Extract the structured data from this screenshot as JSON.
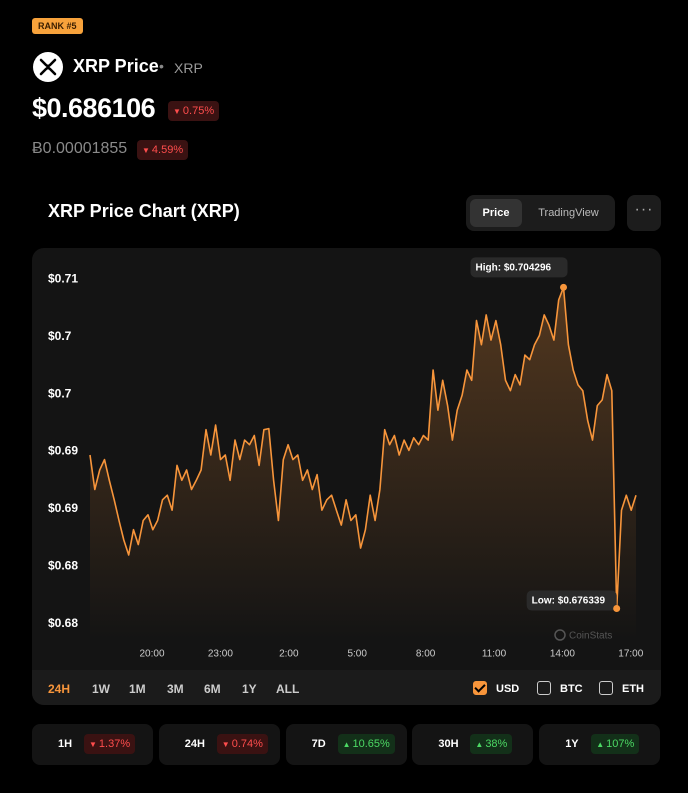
{
  "header": {
    "rank": "RANK #5",
    "name": "XRP Price",
    "symbol": "XRP",
    "price": "$0.686106",
    "change": {
      "text": "0.75%",
      "direction": "down"
    },
    "btc_price": "Ƀ0.00001855",
    "btc_change": {
      "text": "4.59%",
      "direction": "down"
    }
  },
  "tabs": [
    {
      "label": "Price",
      "active": true
    },
    {
      "label": "TradingView",
      "active": false
    }
  ],
  "chart_data": {
    "type": "line",
    "title": "XRP Price Chart (XRP)",
    "color": "#f7953b",
    "values": [
      0.6897,
      0.6867,
      0.6884,
      0.6893,
      0.6875,
      0.6858,
      0.684,
      0.6823,
      0.681,
      0.6832,
      0.6819,
      0.684,
      0.6845,
      0.6832,
      0.684,
      0.6858,
      0.6862,
      0.6849,
      0.6888,
      0.6875,
      0.6884,
      0.6867,
      0.6875,
      0.6884,
      0.6919,
      0.6897,
      0.6923,
      0.6893,
      0.6897,
      0.6875,
      0.691,
      0.6893,
      0.691,
      0.6906,
      0.6914,
      0.6888,
      0.6919,
      0.692,
      0.6875,
      0.684,
      0.6893,
      0.6906,
      0.6893,
      0.6897,
      0.6875,
      0.6884,
      0.6867,
      0.688,
      0.6849,
      0.6858,
      0.6862,
      0.6849,
      0.6836,
      0.6858,
      0.684,
      0.6845,
      0.6816,
      0.6832,
      0.6862,
      0.684,
      0.6867,
      0.6919,
      0.6906,
      0.6914,
      0.6897,
      0.691,
      0.6901,
      0.6912,
      0.6906,
      0.6914,
      0.691,
      0.6971,
      0.6936,
      0.6962,
      0.694,
      0.691,
      0.6936,
      0.6949,
      0.6971,
      0.6962,
      0.7014,
      0.6993,
      0.7019,
      0.6997,
      0.7014,
      0.6993,
      0.6962,
      0.6953,
      0.6967,
      0.6958,
      0.6984,
      0.698,
      0.6993,
      0.7001,
      0.7019,
      0.701,
      0.6997,
      0.7032,
      0.704296,
      0.6993,
      0.6971,
      0.6958,
      0.6953,
      0.6927,
      0.691,
      0.694,
      0.6945,
      0.6967,
      0.6953,
      0.676339,
      0.6849,
      0.6862,
      0.6849,
      0.6862
    ],
    "ylim": [
      0.6736,
      0.7065
    ],
    "yticks": [
      {
        "value": 0.705,
        "label": "$0.71"
      },
      {
        "value": 0.7,
        "label": "$0.7"
      },
      {
        "value": 0.695,
        "label": "$0.7"
      },
      {
        "value": 0.69,
        "label": "$0.69"
      },
      {
        "value": 0.685,
        "label": "$0.69"
      },
      {
        "value": 0.68,
        "label": "$0.68"
      },
      {
        "value": 0.675,
        "label": "$0.68"
      }
    ],
    "time_labels": [
      "20:00",
      "23:00",
      "2:00",
      "5:00",
      "8:00",
      "11:00",
      "14:00",
      "17:00"
    ],
    "grid": false,
    "annotations": {
      "high": "High: $0.704296",
      "low": "Low: $0.676339"
    },
    "watermark": "CoinStats"
  },
  "ranges": [
    {
      "label": "24H",
      "active": true
    },
    {
      "label": "1W",
      "active": false
    },
    {
      "label": "1M",
      "active": false
    },
    {
      "label": "3M",
      "active": false
    },
    {
      "label": "6M",
      "active": false
    },
    {
      "label": "1Y",
      "active": false
    },
    {
      "label": "ALL",
      "active": false
    }
  ],
  "currencies": [
    {
      "label": "USD",
      "checked": true
    },
    {
      "label": "BTC",
      "checked": false
    },
    {
      "label": "ETH",
      "checked": false
    }
  ],
  "stats": [
    {
      "period": "1H",
      "change": "1.37%",
      "direction": "down"
    },
    {
      "period": "24H",
      "change": "0.74%",
      "direction": "down"
    },
    {
      "period": "7D",
      "change": "10.65%",
      "direction": "up"
    },
    {
      "period": "30H",
      "change": "38%",
      "direction": "up"
    },
    {
      "period": "1Y",
      "change": "107%",
      "direction": "up"
    }
  ]
}
